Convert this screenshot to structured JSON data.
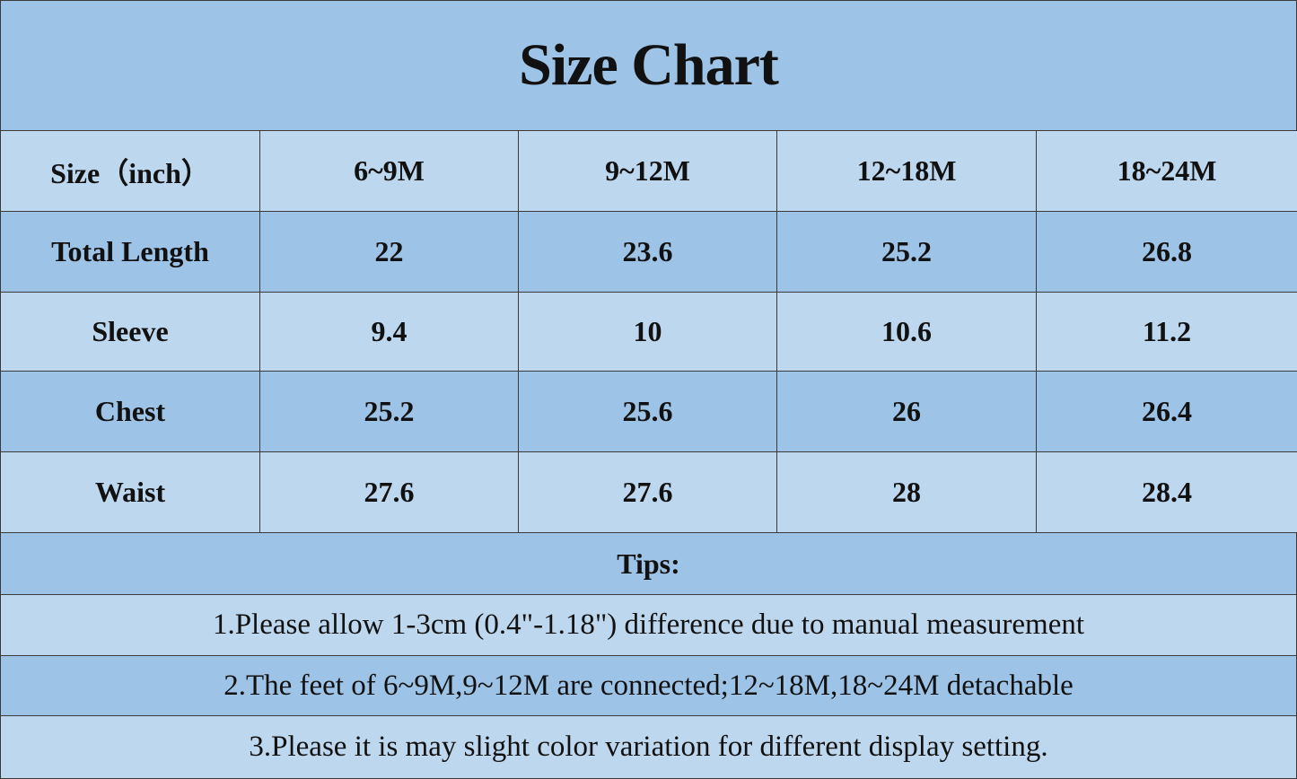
{
  "title": "Size Chart",
  "table": {
    "header": [
      "Size（inch）",
      "6~9M",
      "9~12M",
      "12~18M",
      "18~24M"
    ],
    "rows": [
      [
        "Total Length",
        22,
        23.6,
        25.2,
        26.8
      ],
      [
        "Sleeve",
        9.4,
        10,
        10.6,
        11.2
      ],
      [
        "Chest",
        25.2,
        25.6,
        26,
        26.4
      ],
      [
        "Waist",
        27.6,
        27.6,
        28,
        28.4
      ]
    ]
  },
  "tips": {
    "heading": "Tips:",
    "items": [
      "1.Please allow 1-3cm (0.4\"-1.18\") difference due to manual measurement",
      "2.The feet of 6~9M,9~12M are connected;12~18M,18~24M detachable",
      "3.Please it is may slight color variation for different display setting."
    ]
  }
}
